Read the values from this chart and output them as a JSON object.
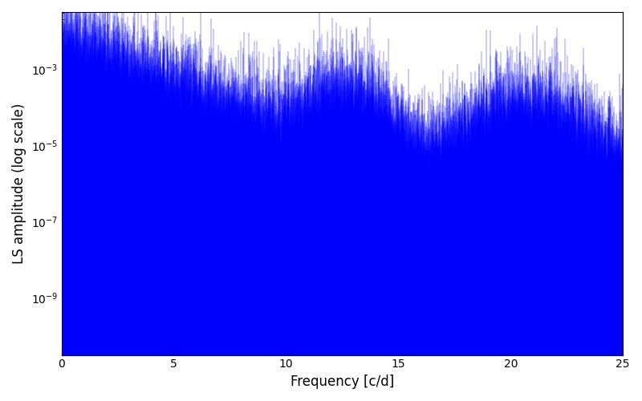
{
  "title": "",
  "xlabel": "Frequency [c/d]",
  "ylabel": "LS amplitude (log scale)",
  "line_color": "#0000ff",
  "xlim": [
    0,
    25
  ],
  "ylim_log": [
    -10.5,
    -1.5
  ],
  "yticks": [
    -9,
    -7,
    -5,
    -3
  ],
  "xticks": [
    0,
    5,
    10,
    15,
    20,
    25
  ],
  "background_color": "#ffffff",
  "figsize": [
    8.0,
    5.0
  ],
  "dpi": 100,
  "seed": 42,
  "n_points": 15000,
  "freq_max": 25.0
}
